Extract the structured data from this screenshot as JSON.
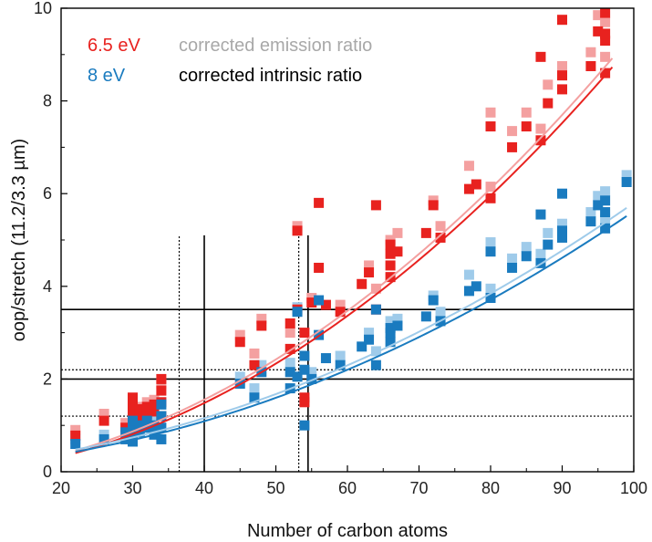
{
  "chart_data": {
    "type": "scatter",
    "xlabel": "Number of carbon atoms",
    "ylabel": "oop/stretch (11.2/3.3 µm)",
    "xlim": [
      20,
      100
    ],
    "ylim": [
      0,
      10
    ],
    "xticks": [
      20,
      30,
      40,
      50,
      60,
      70,
      80,
      90,
      100
    ],
    "yticks": [
      0,
      2,
      4,
      6,
      8,
      10
    ],
    "colors": {
      "red": "#e8221f",
      "red_light": "#f4a0a0",
      "blue": "#1a7bbf",
      "blue_light": "#9fcbea",
      "grey": "#a8a8a8",
      "black": "#000000"
    },
    "legend": {
      "row1_series": "6.5 eV",
      "row1_method": "corrected emission ratio",
      "row2_series": "8 eV",
      "row2_method": "corrected intrinsic ratio"
    },
    "series": [
      {
        "name": "6.5 eV corrected intrinsic ratio",
        "color": "#e8221f",
        "points": [
          [
            22,
            0.78
          ],
          [
            26,
            1.1
          ],
          [
            29,
            0.95
          ],
          [
            30,
            1.15
          ],
          [
            30,
            1.3
          ],
          [
            30,
            1.45
          ],
          [
            30,
            1.6
          ],
          [
            31,
            1.2
          ],
          [
            31,
            1.35
          ],
          [
            32,
            1.25
          ],
          [
            32,
            1.4
          ],
          [
            33,
            1.3
          ],
          [
            33,
            1.45
          ],
          [
            34,
            1.2
          ],
          [
            34,
            1.5
          ],
          [
            34,
            1.75
          ],
          [
            34,
            2.0
          ],
          [
            45,
            2.8
          ],
          [
            47,
            2.3
          ],
          [
            48,
            3.15
          ],
          [
            52,
            3.2
          ],
          [
            52,
            2.65
          ],
          [
            53,
            5.2
          ],
          [
            53,
            3.5
          ],
          [
            54,
            1.6
          ],
          [
            54,
            1.5
          ],
          [
            54,
            3.0
          ],
          [
            55,
            3.65
          ],
          [
            56,
            4.4
          ],
          [
            56,
            5.8
          ],
          [
            57,
            3.6
          ],
          [
            59,
            3.45
          ],
          [
            62,
            4.05
          ],
          [
            63,
            4.3
          ],
          [
            64,
            3.5
          ],
          [
            64,
            5.75
          ],
          [
            66,
            4.2
          ],
          [
            66,
            4.45
          ],
          [
            66,
            4.7
          ],
          [
            66,
            4.9
          ],
          [
            67,
            4.75
          ],
          [
            71,
            5.15
          ],
          [
            72,
            5.75
          ],
          [
            73,
            5.05
          ],
          [
            77,
            6.1
          ],
          [
            78,
            6.2
          ],
          [
            80,
            5.9
          ],
          [
            80,
            7.45
          ],
          [
            83,
            7.0
          ],
          [
            85,
            7.45
          ],
          [
            87,
            7.15
          ],
          [
            87,
            8.95
          ],
          [
            88,
            7.95
          ],
          [
            90,
            8.25
          ],
          [
            90,
            8.55
          ],
          [
            90,
            9.75
          ],
          [
            94,
            8.75
          ],
          [
            95,
            9.5
          ],
          [
            96,
            8.6
          ],
          [
            96,
            9.3
          ],
          [
            96,
            9.45
          ],
          [
            96,
            9.9
          ]
        ]
      },
      {
        "name": "6.5 eV corrected emission ratio",
        "color": "#f4a0a0",
        "points": [
          [
            22,
            0.9
          ],
          [
            26,
            1.25
          ],
          [
            29,
            1.05
          ],
          [
            30,
            1.3
          ],
          [
            30,
            1.55
          ],
          [
            31,
            1.4
          ],
          [
            32,
            1.5
          ],
          [
            33,
            1.55
          ],
          [
            34,
            1.9
          ],
          [
            45,
            2.95
          ],
          [
            47,
            2.55
          ],
          [
            48,
            3.3
          ],
          [
            52,
            3.0
          ],
          [
            53,
            5.3
          ],
          [
            55,
            3.75
          ],
          [
            59,
            3.6
          ],
          [
            63,
            4.45
          ],
          [
            64,
            3.95
          ],
          [
            66,
            5.0
          ],
          [
            67,
            5.15
          ],
          [
            72,
            5.85
          ],
          [
            73,
            5.3
          ],
          [
            77,
            6.6
          ],
          [
            80,
            6.15
          ],
          [
            80,
            7.75
          ],
          [
            83,
            7.35
          ],
          [
            85,
            7.75
          ],
          [
            87,
            7.4
          ],
          [
            88,
            8.35
          ],
          [
            90,
            8.75
          ],
          [
            94,
            9.05
          ],
          [
            95,
            9.85
          ],
          [
            96,
            8.95
          ],
          [
            96,
            9.7
          ]
        ]
      },
      {
        "name": "8 eV corrected intrinsic ratio",
        "color": "#1a7bbf",
        "points": [
          [
            22,
            0.6
          ],
          [
            26,
            0.7
          ],
          [
            29,
            0.7
          ],
          [
            29,
            0.85
          ],
          [
            30,
            0.75
          ],
          [
            30,
            0.9
          ],
          [
            30,
            1.1
          ],
          [
            30,
            0.65
          ],
          [
            31,
            0.85
          ],
          [
            31,
            1.0
          ],
          [
            32,
            0.95
          ],
          [
            32,
            1.1
          ],
          [
            33,
            0.8
          ],
          [
            33,
            1.0
          ],
          [
            34,
            0.7
          ],
          [
            34,
            0.95
          ],
          [
            34,
            1.2
          ],
          [
            34,
            1.45
          ],
          [
            45,
            1.9
          ],
          [
            47,
            1.6
          ],
          [
            48,
            2.15
          ],
          [
            52,
            2.15
          ],
          [
            52,
            1.8
          ],
          [
            53,
            3.45
          ],
          [
            53,
            2.05
          ],
          [
            54,
            1.0
          ],
          [
            54,
            2.2
          ],
          [
            54,
            2.5
          ],
          [
            55,
            2.0
          ],
          [
            56,
            3.7
          ],
          [
            56,
            2.95
          ],
          [
            57,
            2.45
          ],
          [
            59,
            2.3
          ],
          [
            62,
            2.7
          ],
          [
            63,
            2.85
          ],
          [
            64,
            2.3
          ],
          [
            64,
            3.5
          ],
          [
            66,
            2.8
          ],
          [
            66,
            3.0
          ],
          [
            66,
            3.1
          ],
          [
            67,
            3.15
          ],
          [
            71,
            3.35
          ],
          [
            72,
            3.7
          ],
          [
            73,
            3.25
          ],
          [
            77,
            3.9
          ],
          [
            78,
            4.0
          ],
          [
            80,
            3.75
          ],
          [
            80,
            4.75
          ],
          [
            83,
            4.4
          ],
          [
            85,
            4.65
          ],
          [
            87,
            4.5
          ],
          [
            87,
            5.55
          ],
          [
            88,
            4.9
          ],
          [
            90,
            5.05
          ],
          [
            90,
            5.2
          ],
          [
            90,
            6.0
          ],
          [
            94,
            5.4
          ],
          [
            95,
            5.75
          ],
          [
            96,
            5.25
          ],
          [
            96,
            5.6
          ],
          [
            96,
            5.85
          ],
          [
            99,
            6.25
          ]
        ]
      },
      {
        "name": "8 eV corrected emission ratio",
        "color": "#9fcbea",
        "points": [
          [
            22,
            0.7
          ],
          [
            26,
            0.8
          ],
          [
            29,
            0.8
          ],
          [
            30,
            1.0
          ],
          [
            30,
            1.2
          ],
          [
            31,
            1.05
          ],
          [
            32,
            1.15
          ],
          [
            33,
            1.1
          ],
          [
            34,
            1.5
          ],
          [
            45,
            2.05
          ],
          [
            47,
            1.8
          ],
          [
            48,
            2.3
          ],
          [
            52,
            2.35
          ],
          [
            53,
            3.55
          ],
          [
            55,
            2.15
          ],
          [
            59,
            2.5
          ],
          [
            63,
            3.0
          ],
          [
            64,
            2.6
          ],
          [
            66,
            3.25
          ],
          [
            67,
            3.3
          ],
          [
            72,
            3.8
          ],
          [
            73,
            3.45
          ],
          [
            77,
            4.25
          ],
          [
            80,
            3.95
          ],
          [
            80,
            4.95
          ],
          [
            83,
            4.6
          ],
          [
            85,
            4.85
          ],
          [
            87,
            4.7
          ],
          [
            88,
            5.15
          ],
          [
            90,
            5.35
          ],
          [
            94,
            5.6
          ],
          [
            95,
            5.95
          ],
          [
            96,
            5.45
          ],
          [
            96,
            6.05
          ],
          [
            99,
            6.4
          ]
        ]
      }
    ],
    "fits": [
      {
        "name": "6.5 eV intrinsic fit",
        "color": "#e8221f",
        "a": 0.000895,
        "b": 0.0045,
        "c": -0.13,
        "x_range": [
          22,
          97
        ]
      },
      {
        "name": "6.5 eV emission fit",
        "color": "#f4a0a0",
        "a": 0.000905,
        "b": 0.0052,
        "c": -0.1,
        "x_range": [
          22,
          97
        ]
      },
      {
        "name": "8 eV intrinsic fit",
        "color": "#1a7bbf",
        "a": 0.0005,
        "b": 0.0055,
        "c": 0.07,
        "x_range": [
          22,
          99
        ]
      },
      {
        "name": "8 eV emission fit",
        "color": "#9fcbea",
        "a": 0.00051,
        "b": 0.006,
        "c": 0.1,
        "x_range": [
          22,
          99
        ]
      }
    ],
    "reference_lines": {
      "horizontal_solid": [
        3.5,
        2.0
      ],
      "horizontal_dotted": [
        2.2,
        1.2
      ],
      "vertical_solid": [
        [
          40,
          0,
          5.1
        ],
        [
          54.5,
          0,
          5.1
        ]
      ],
      "vertical_dotted": [
        [
          36.5,
          0,
          5.1
        ],
        [
          53.2,
          0,
          5.1
        ]
      ]
    }
  }
}
